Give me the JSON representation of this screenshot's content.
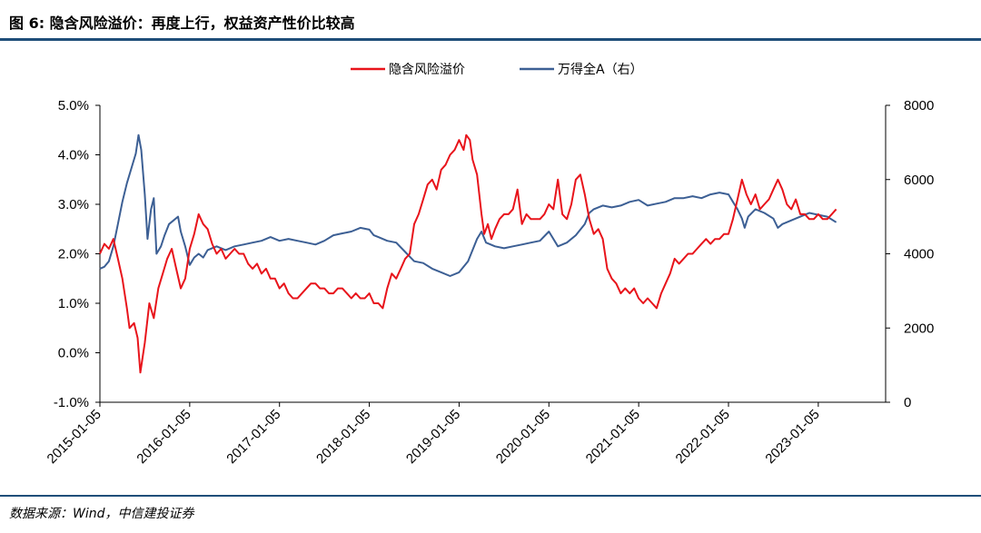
{
  "header": {
    "title": "图 6: 隐含风险溢价：再度上行，权益资产性价比较高"
  },
  "footer": {
    "source": "数据来源：Wind，中信建投证券"
  },
  "chart_data": {
    "type": "line",
    "title": "图 6: 隐含风险溢价：再度上行，权益资产性价比较高",
    "x_tick_labels": [
      "2015-01-05",
      "2016-01-05",
      "2017-01-05",
      "2018-01-05",
      "2019-01-05",
      "2020-01-05",
      "2021-01-05",
      "2022-01-05",
      "2023-01-05"
    ],
    "x_range": [
      2015.0,
      2023.75
    ],
    "y_left": {
      "range": [
        -1.0,
        5.0
      ],
      "ticks": [
        "-1.0%",
        "0.0%",
        "1.0%",
        "2.0%",
        "3.0%",
        "4.0%",
        "5.0%"
      ]
    },
    "y_right": {
      "range": [
        0,
        8000
      ],
      "ticks": [
        "0",
        "2000",
        "4000",
        "6000",
        "8000"
      ]
    },
    "legend": {
      "placement": "top-center",
      "entries": [
        "隐含风险溢价",
        "万得全A（右）"
      ]
    },
    "series": [
      {
        "name": "隐含风险溢价",
        "axis": "left",
        "color": "#e8141b",
        "points": [
          [
            2015.0,
            2.0
          ],
          [
            2015.05,
            2.2
          ],
          [
            2015.1,
            2.1
          ],
          [
            2015.15,
            2.3
          ],
          [
            2015.2,
            1.9
          ],
          [
            2015.25,
            1.5
          ],
          [
            2015.3,
            0.9
          ],
          [
            2015.33,
            0.5
          ],
          [
            2015.38,
            0.6
          ],
          [
            2015.42,
            0.3
          ],
          [
            2015.45,
            -0.4
          ],
          [
            2015.5,
            0.2
          ],
          [
            2015.55,
            1.0
          ],
          [
            2015.6,
            0.7
          ],
          [
            2015.65,
            1.3
          ],
          [
            2015.7,
            1.6
          ],
          [
            2015.75,
            1.9
          ],
          [
            2015.8,
            2.1
          ],
          [
            2015.85,
            1.7
          ],
          [
            2015.9,
            1.3
          ],
          [
            2015.95,
            1.5
          ],
          [
            2016.0,
            2.1
          ],
          [
            2016.05,
            2.4
          ],
          [
            2016.1,
            2.8
          ],
          [
            2016.15,
            2.6
          ],
          [
            2016.2,
            2.5
          ],
          [
            2016.25,
            2.2
          ],
          [
            2016.3,
            2.0
          ],
          [
            2016.35,
            2.1
          ],
          [
            2016.4,
            1.9
          ],
          [
            2016.45,
            2.0
          ],
          [
            2016.5,
            2.1
          ],
          [
            2016.55,
            2.0
          ],
          [
            2016.6,
            2.0
          ],
          [
            2016.65,
            1.8
          ],
          [
            2016.7,
            1.7
          ],
          [
            2016.75,
            1.8
          ],
          [
            2016.8,
            1.6
          ],
          [
            2016.85,
            1.7
          ],
          [
            2016.9,
            1.5
          ],
          [
            2016.95,
            1.5
          ],
          [
            2017.0,
            1.3
          ],
          [
            2017.05,
            1.4
          ],
          [
            2017.1,
            1.2
          ],
          [
            2017.15,
            1.1
          ],
          [
            2017.2,
            1.1
          ],
          [
            2017.25,
            1.2
          ],
          [
            2017.3,
            1.3
          ],
          [
            2017.35,
            1.4
          ],
          [
            2017.4,
            1.4
          ],
          [
            2017.45,
            1.3
          ],
          [
            2017.5,
            1.3
          ],
          [
            2017.55,
            1.2
          ],
          [
            2017.6,
            1.2
          ],
          [
            2017.65,
            1.3
          ],
          [
            2017.7,
            1.3
          ],
          [
            2017.75,
            1.2
          ],
          [
            2017.8,
            1.1
          ],
          [
            2017.85,
            1.2
          ],
          [
            2017.9,
            1.1
          ],
          [
            2017.95,
            1.1
          ],
          [
            2018.0,
            1.2
          ],
          [
            2018.05,
            1.0
          ],
          [
            2018.1,
            1.0
          ],
          [
            2018.15,
            0.9
          ],
          [
            2018.2,
            1.3
          ],
          [
            2018.25,
            1.6
          ],
          [
            2018.3,
            1.5
          ],
          [
            2018.35,
            1.7
          ],
          [
            2018.4,
            1.9
          ],
          [
            2018.45,
            2.0
          ],
          [
            2018.5,
            2.6
          ],
          [
            2018.55,
            2.8
          ],
          [
            2018.6,
            3.1
          ],
          [
            2018.65,
            3.4
          ],
          [
            2018.7,
            3.5
          ],
          [
            2018.75,
            3.3
          ],
          [
            2018.8,
            3.7
          ],
          [
            2018.85,
            3.8
          ],
          [
            2018.9,
            4.0
          ],
          [
            2018.95,
            4.1
          ],
          [
            2019.0,
            4.3
          ],
          [
            2019.05,
            4.1
          ],
          [
            2019.08,
            4.4
          ],
          [
            2019.12,
            4.3
          ],
          [
            2019.15,
            3.9
          ],
          [
            2019.2,
            3.6
          ],
          [
            2019.25,
            2.8
          ],
          [
            2019.28,
            2.4
          ],
          [
            2019.32,
            2.6
          ],
          [
            2019.36,
            2.3
          ],
          [
            2019.4,
            2.5
          ],
          [
            2019.45,
            2.7
          ],
          [
            2019.5,
            2.8
          ],
          [
            2019.55,
            2.8
          ],
          [
            2019.6,
            2.9
          ],
          [
            2019.65,
            3.3
          ],
          [
            2019.7,
            2.6
          ],
          [
            2019.75,
            2.8
          ],
          [
            2019.8,
            2.7
          ],
          [
            2019.85,
            2.7
          ],
          [
            2019.9,
            2.7
          ],
          [
            2019.95,
            2.8
          ],
          [
            2020.0,
            3.0
          ],
          [
            2020.05,
            2.9
          ],
          [
            2020.1,
            3.5
          ],
          [
            2020.15,
            2.8
          ],
          [
            2020.2,
            2.7
          ],
          [
            2020.25,
            3.0
          ],
          [
            2020.3,
            3.5
          ],
          [
            2020.35,
            3.6
          ],
          [
            2020.4,
            3.2
          ],
          [
            2020.45,
            2.7
          ],
          [
            2020.5,
            2.4
          ],
          [
            2020.55,
            2.5
          ],
          [
            2020.6,
            2.3
          ],
          [
            2020.65,
            1.7
          ],
          [
            2020.7,
            1.5
          ],
          [
            2020.75,
            1.4
          ],
          [
            2020.8,
            1.2
          ],
          [
            2020.85,
            1.3
          ],
          [
            2020.9,
            1.2
          ],
          [
            2020.95,
            1.3
          ],
          [
            2021.0,
            1.1
          ],
          [
            2021.05,
            1.0
          ],
          [
            2021.1,
            1.1
          ],
          [
            2021.15,
            1.0
          ],
          [
            2021.2,
            0.9
          ],
          [
            2021.25,
            1.2
          ],
          [
            2021.3,
            1.4
          ],
          [
            2021.35,
            1.6
          ],
          [
            2021.4,
            1.9
          ],
          [
            2021.45,
            1.8
          ],
          [
            2021.5,
            1.9
          ],
          [
            2021.55,
            2.0
          ],
          [
            2021.6,
            2.0
          ],
          [
            2021.65,
            2.1
          ],
          [
            2021.7,
            2.2
          ],
          [
            2021.75,
            2.3
          ],
          [
            2021.8,
            2.2
          ],
          [
            2021.85,
            2.3
          ],
          [
            2021.9,
            2.3
          ],
          [
            2021.95,
            2.4
          ],
          [
            2022.0,
            2.4
          ],
          [
            2022.05,
            2.7
          ],
          [
            2022.1,
            3.1
          ],
          [
            2022.15,
            3.5
          ],
          [
            2022.2,
            3.2
          ],
          [
            2022.25,
            3.0
          ],
          [
            2022.3,
            3.2
          ],
          [
            2022.35,
            2.9
          ],
          [
            2022.4,
            3.0
          ],
          [
            2022.45,
            3.1
          ],
          [
            2022.5,
            3.3
          ],
          [
            2022.55,
            3.5
          ],
          [
            2022.6,
            3.3
          ],
          [
            2022.65,
            3.0
          ],
          [
            2022.7,
            2.9
          ],
          [
            2022.75,
            3.1
          ],
          [
            2022.8,
            2.8
          ],
          [
            2022.85,
            2.8
          ],
          [
            2022.9,
            2.7
          ],
          [
            2022.95,
            2.7
          ],
          [
            2023.0,
            2.8
          ],
          [
            2023.05,
            2.7
          ],
          [
            2023.1,
            2.7
          ],
          [
            2023.15,
            2.8
          ],
          [
            2023.2,
            2.9
          ]
        ]
      },
      {
        "name": "万得全A（右）",
        "axis": "right",
        "color": "#3c5f94",
        "points": [
          [
            2015.0,
            3600
          ],
          [
            2015.05,
            3650
          ],
          [
            2015.1,
            3800
          ],
          [
            2015.15,
            4200
          ],
          [
            2015.2,
            4800
          ],
          [
            2015.25,
            5400
          ],
          [
            2015.3,
            5900
          ],
          [
            2015.35,
            6300
          ],
          [
            2015.4,
            6700
          ],
          [
            2015.43,
            7200
          ],
          [
            2015.46,
            6800
          ],
          [
            2015.5,
            5600
          ],
          [
            2015.53,
            4400
          ],
          [
            2015.57,
            5200
          ],
          [
            2015.6,
            5500
          ],
          [
            2015.63,
            4000
          ],
          [
            2015.68,
            4200
          ],
          [
            2015.72,
            4500
          ],
          [
            2015.77,
            4800
          ],
          [
            2015.82,
            4900
          ],
          [
            2015.87,
            5000
          ],
          [
            2015.9,
            4600
          ],
          [
            2015.95,
            4200
          ],
          [
            2016.0,
            3700
          ],
          [
            2016.05,
            3900
          ],
          [
            2016.1,
            4000
          ],
          [
            2016.15,
            3900
          ],
          [
            2016.2,
            4100
          ],
          [
            2016.3,
            4200
          ],
          [
            2016.4,
            4100
          ],
          [
            2016.5,
            4200
          ],
          [
            2016.6,
            4250
          ],
          [
            2016.7,
            4300
          ],
          [
            2016.8,
            4350
          ],
          [
            2016.9,
            4450
          ],
          [
            2017.0,
            4350
          ],
          [
            2017.1,
            4400
          ],
          [
            2017.2,
            4350
          ],
          [
            2017.3,
            4300
          ],
          [
            2017.4,
            4250
          ],
          [
            2017.5,
            4350
          ],
          [
            2017.6,
            4500
          ],
          [
            2017.7,
            4550
          ],
          [
            2017.8,
            4600
          ],
          [
            2017.9,
            4700
          ],
          [
            2018.0,
            4650
          ],
          [
            2018.05,
            4500
          ],
          [
            2018.1,
            4450
          ],
          [
            2018.2,
            4350
          ],
          [
            2018.3,
            4300
          ],
          [
            2018.4,
            4050
          ],
          [
            2018.5,
            3800
          ],
          [
            2018.6,
            3750
          ],
          [
            2018.7,
            3600
          ],
          [
            2018.8,
            3500
          ],
          [
            2018.9,
            3400
          ],
          [
            2019.0,
            3500
          ],
          [
            2019.1,
            3800
          ],
          [
            2019.2,
            4400
          ],
          [
            2019.25,
            4600
          ],
          [
            2019.3,
            4300
          ],
          [
            2019.4,
            4200
          ],
          [
            2019.5,
            4150
          ],
          [
            2019.6,
            4200
          ],
          [
            2019.7,
            4250
          ],
          [
            2019.8,
            4300
          ],
          [
            2019.9,
            4350
          ],
          [
            2020.0,
            4600
          ],
          [
            2020.1,
            4200
          ],
          [
            2020.2,
            4300
          ],
          [
            2020.3,
            4500
          ],
          [
            2020.4,
            4800
          ],
          [
            2020.45,
            5100
          ],
          [
            2020.5,
            5200
          ],
          [
            2020.6,
            5300
          ],
          [
            2020.7,
            5250
          ],
          [
            2020.8,
            5300
          ],
          [
            2020.9,
            5400
          ],
          [
            2021.0,
            5450
          ],
          [
            2021.1,
            5300
          ],
          [
            2021.2,
            5350
          ],
          [
            2021.3,
            5400
          ],
          [
            2021.4,
            5500
          ],
          [
            2021.5,
            5500
          ],
          [
            2021.6,
            5550
          ],
          [
            2021.7,
            5500
          ],
          [
            2021.8,
            5600
          ],
          [
            2021.9,
            5650
          ],
          [
            2022.0,
            5600
          ],
          [
            2022.05,
            5400
          ],
          [
            2022.1,
            5200
          ],
          [
            2022.15,
            4950
          ],
          [
            2022.18,
            4700
          ],
          [
            2022.22,
            5000
          ],
          [
            2022.3,
            5200
          ],
          [
            2022.4,
            5100
          ],
          [
            2022.5,
            4950
          ],
          [
            2022.55,
            4700
          ],
          [
            2022.6,
            4800
          ],
          [
            2022.7,
            4900
          ],
          [
            2022.8,
            5000
          ],
          [
            2022.9,
            5100
          ],
          [
            2023.0,
            5050
          ],
          [
            2023.1,
            5000
          ],
          [
            2023.2,
            4850
          ]
        ]
      }
    ]
  }
}
